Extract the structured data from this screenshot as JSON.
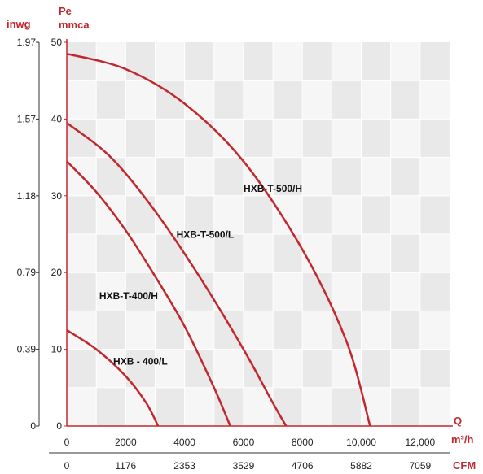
{
  "chart_data": {
    "type": "line",
    "x_label_top": "Q",
    "x_unit_top": "m³/h",
    "x_unit_bottom": "CFM",
    "y_label_left": "inwg",
    "y_label_right_line1": "Pe",
    "y_label_right_line2": "mmca",
    "x_ticks": [
      "0",
      "2000",
      "4000",
      "6000",
      "8000",
      "10,000",
      "12,000"
    ],
    "x_ticks_cfm": [
      "0",
      "1176",
      "2353",
      "3529",
      "4706",
      "5882",
      "7059"
    ],
    "y_ticks_mmca": [
      "0",
      "10",
      "20",
      "30",
      "40",
      "50"
    ],
    "y_ticks_inwg": [
      "0",
      "0.39",
      "0.79",
      "1.18",
      "1.57",
      "1.97"
    ],
    "xlim": [
      0,
      13000
    ],
    "ylim": [
      0,
      50
    ],
    "grid": true,
    "line_color": "#c0282e",
    "axis_color": "#c0282e",
    "series": [
      {
        "name": "HXB-T-500/H",
        "points": [
          [
            0,
            48.5
          ],
          [
            2000,
            46.5
          ],
          [
            4000,
            42
          ],
          [
            6000,
            34.5
          ],
          [
            8000,
            23
          ],
          [
            9500,
            11
          ],
          [
            10300,
            0
          ]
        ]
      },
      {
        "name": "HXB-T-500/L",
        "points": [
          [
            0,
            39.5
          ],
          [
            1500,
            35
          ],
          [
            3000,
            28
          ],
          [
            4500,
            19.5
          ],
          [
            6000,
            10
          ],
          [
            7000,
            3
          ],
          [
            7450,
            0
          ]
        ]
      },
      {
        "name": "HXB-T-400/H",
        "points": [
          [
            0,
            34.5
          ],
          [
            1000,
            30.5
          ],
          [
            2000,
            25.5
          ],
          [
            3000,
            19.5
          ],
          [
            4000,
            13
          ],
          [
            5000,
            5
          ],
          [
            5550,
            0
          ]
        ]
      },
      {
        "name": "HXB - 400/L",
        "points": [
          [
            0,
            12.5
          ],
          [
            1000,
            10
          ],
          [
            2000,
            6.5
          ],
          [
            2700,
            3
          ],
          [
            3100,
            0
          ]
        ]
      }
    ]
  }
}
